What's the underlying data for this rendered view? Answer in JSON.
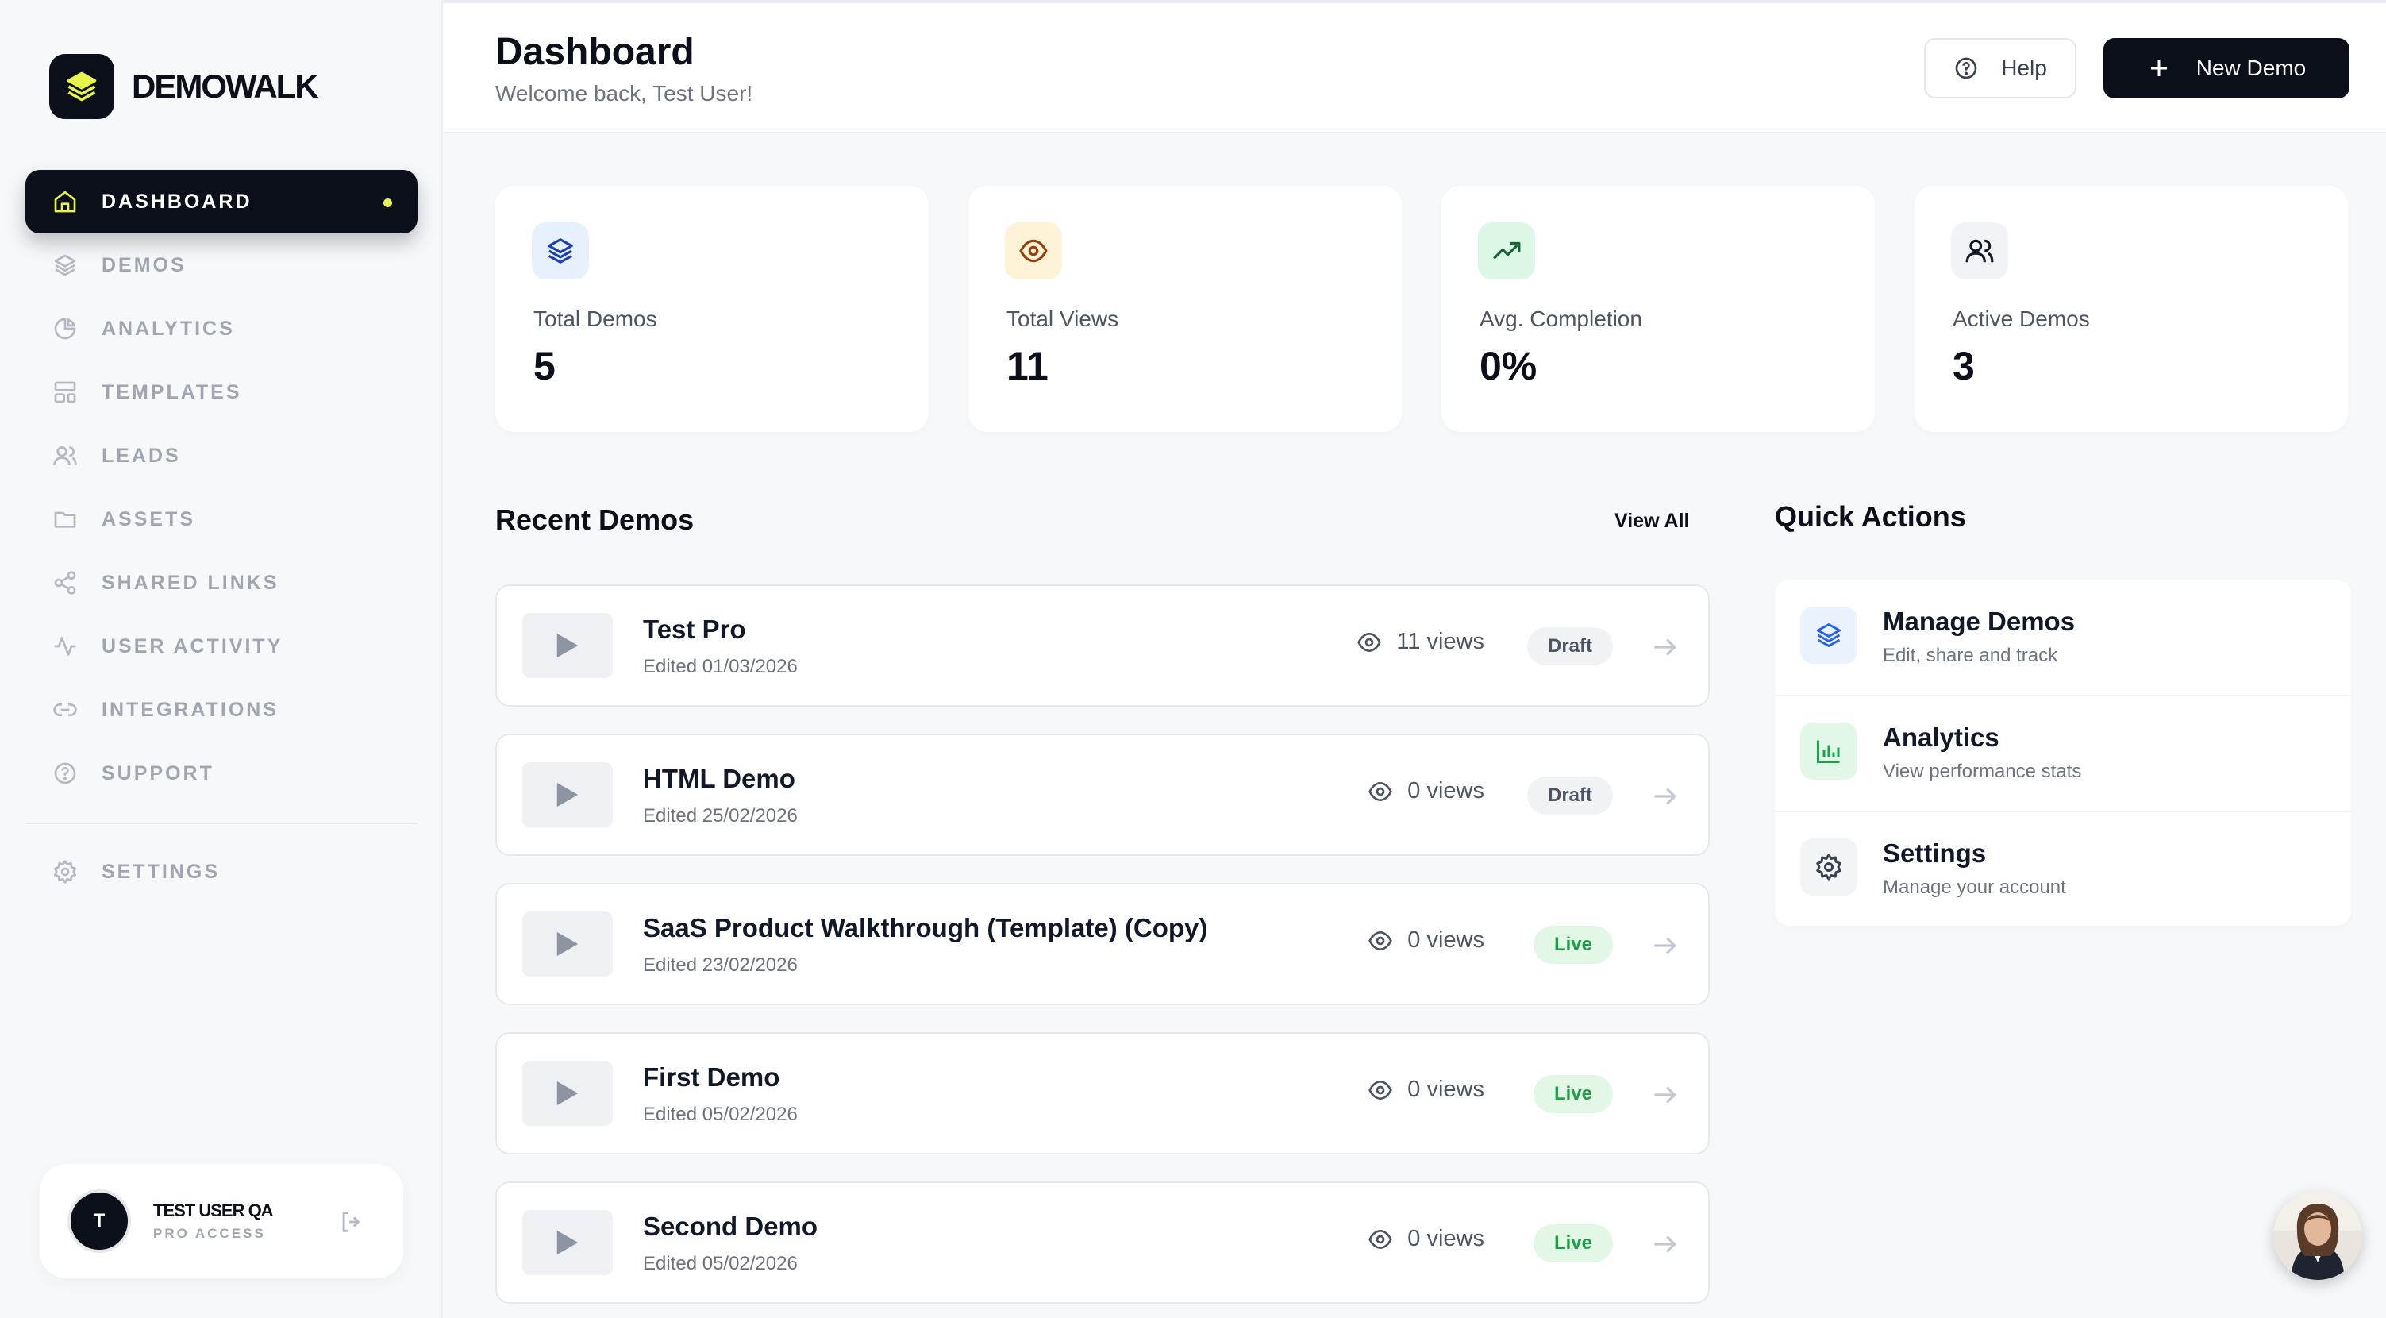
{
  "brand": {
    "name": "DEMOWALK"
  },
  "sidebar": {
    "items": [
      {
        "label": "DASHBOARD",
        "icon": "home-icon",
        "active": true
      },
      {
        "label": "DEMOS",
        "icon": "layers-icon"
      },
      {
        "label": "ANALYTICS",
        "icon": "pie-chart-icon"
      },
      {
        "label": "TEMPLATES",
        "icon": "layout-icon"
      },
      {
        "label": "LEADS",
        "icon": "users-icon"
      },
      {
        "label": "ASSETS",
        "icon": "folder-icon"
      },
      {
        "label": "SHARED LINKS",
        "icon": "share-icon"
      },
      {
        "label": "USER ACTIVITY",
        "icon": "activity-icon"
      },
      {
        "label": "INTEGRATIONS",
        "icon": "link-icon"
      },
      {
        "label": "SUPPORT",
        "icon": "help-circle-icon"
      }
    ],
    "settings": {
      "label": "SETTINGS",
      "icon": "gear-icon"
    }
  },
  "user": {
    "initial": "T",
    "name": "TEST USER QA",
    "plan": "PRO ACCESS"
  },
  "header": {
    "title": "Dashboard",
    "subtitle": "Welcome back, Test User!",
    "help_label": "Help",
    "new_demo_label": "New Demo"
  },
  "stats": [
    {
      "label": "Total Demos",
      "value": "5",
      "icon": "layers-icon",
      "color": "#3b82f6",
      "bg": "#e7f1fe"
    },
    {
      "label": "Total Views",
      "value": "11",
      "icon": "eye-icon",
      "color": "#b45309",
      "bg": "#fef3d7"
    },
    {
      "label": "Avg. Completion",
      "value": "0%",
      "icon": "trending-up-icon",
      "color": "#16a34a",
      "bg": "#dcf7e5"
    },
    {
      "label": "Active Demos",
      "value": "3",
      "icon": "users-icon",
      "color": "#374151",
      "bg": "#f1f3f6"
    }
  ],
  "recent": {
    "title": "Recent Demos",
    "view_all": "View All",
    "demos": [
      {
        "name": "Test Pro",
        "date": "Edited 01/03/2026",
        "views": "11 views",
        "status": "Draft"
      },
      {
        "name": "HTML Demo",
        "date": "Edited 25/02/2026",
        "views": "0 views",
        "status": "Draft"
      },
      {
        "name": "SaaS Product Walkthrough (Template) (Copy)",
        "date": "Edited 23/02/2026",
        "views": "0 views",
        "status": "Live"
      },
      {
        "name": "First Demo",
        "date": "Edited 05/02/2026",
        "views": "0 views",
        "status": "Live"
      },
      {
        "name": "Second Demo",
        "date": "Edited 05/02/2026",
        "views": "0 views",
        "status": "Live"
      }
    ]
  },
  "quick_actions": {
    "title": "Quick Actions",
    "items": [
      {
        "title": "Manage Demos",
        "subtitle": "Edit, share and track",
        "icon": "layers-icon",
        "color": "#2563eb",
        "bg": "#eaf2fe"
      },
      {
        "title": "Analytics",
        "subtitle": "View performance stats",
        "icon": "bar-chart-icon",
        "color": "#16a34a",
        "bg": "#e3f7e9"
      },
      {
        "title": "Settings",
        "subtitle": "Manage your account",
        "icon": "gear-icon",
        "color": "#374151",
        "bg": "#f3f4f6"
      }
    ]
  },
  "colors": {
    "accent": "#0b0f1a",
    "highlight": "#e8f54a",
    "live": "#1f9d47"
  }
}
